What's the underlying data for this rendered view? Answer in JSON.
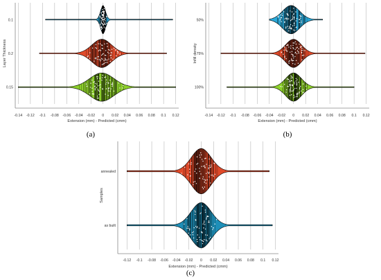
{
  "captions": [
    "(a)",
    "(b)",
    "(c)"
  ],
  "chart_data": [
    {
      "type": "violin",
      "ylabel": "Layer Thickness",
      "xlabel": "Extension (mm) - Predicted (cmm)",
      "xlim": [
        -0.145,
        0.125
      ],
      "ticks": [
        "-0.14",
        "-0.12",
        "-0.1",
        "-0.08",
        "-0.06",
        "-0.04",
        "-0.02",
        "0",
        "0.02",
        "0.04",
        "0.06",
        "0.08",
        "0.1",
        "0.12"
      ],
      "grid": true,
      "series": [
        {
          "label": "0.1",
          "color": "#2aa8d8",
          "center": 0.0,
          "spread": 0.004,
          "min": -0.095,
          "max": 0.115
        },
        {
          "label": "0.2",
          "color": "#e04a2a",
          "center": -0.002,
          "spread": 0.016,
          "min": -0.105,
          "max": 0.105
        },
        {
          "label": "0.15",
          "color": "#8ccf2a",
          "center": -0.002,
          "spread": 0.02,
          "min": -0.14,
          "max": 0.12
        }
      ]
    },
    {
      "type": "violin",
      "ylabel": "Infill density",
      "xlabel": "Extension (mm) - Predicted (cmm)",
      "xlim": [
        -0.145,
        0.125
      ],
      "ticks": [
        "-0.14",
        "-0.12",
        "-0.1",
        "-0.08",
        "-0.06",
        "-0.04",
        "-0.02",
        "0",
        "0.02",
        "0.04",
        "0.06",
        "0.08",
        "0.1",
        "0.12"
      ],
      "grid": true,
      "series": [
        {
          "label": "50%",
          "color": "#2aa8d8",
          "center": -0.004,
          "spread": 0.014,
          "min": -0.04,
          "max": 0.048
        },
        {
          "label": "75%",
          "color": "#e04a2a",
          "center": 0.0,
          "spread": 0.013,
          "min": -0.12,
          "max": 0.118
        },
        {
          "label": "100%",
          "color": "#8ccf2a",
          "center": 0.0,
          "spread": 0.013,
          "min": -0.11,
          "max": 0.1
        }
      ]
    },
    {
      "type": "violin",
      "ylabel": "Samples",
      "xlabel": "Extension (mm) - Predicted (cmm)",
      "xlim": [
        -0.135,
        0.125
      ],
      "ticks": [
        "-0.12",
        "-0.1",
        "-0.08",
        "-0.06",
        "-0.04",
        "-0.02",
        "0",
        "0.02",
        "0.04",
        "0.06",
        "0.08",
        "0.1",
        "0.12"
      ],
      "grid": true,
      "series": [
        {
          "label": "annealed",
          "color": "#e04a2a",
          "center": 0.0,
          "spread": 0.016,
          "min": -0.12,
          "max": 0.11
        },
        {
          "label": "as built",
          "color": "#1e8fb8",
          "center": 0.0,
          "spread": 0.016,
          "min": -0.12,
          "max": 0.115
        }
      ]
    }
  ]
}
